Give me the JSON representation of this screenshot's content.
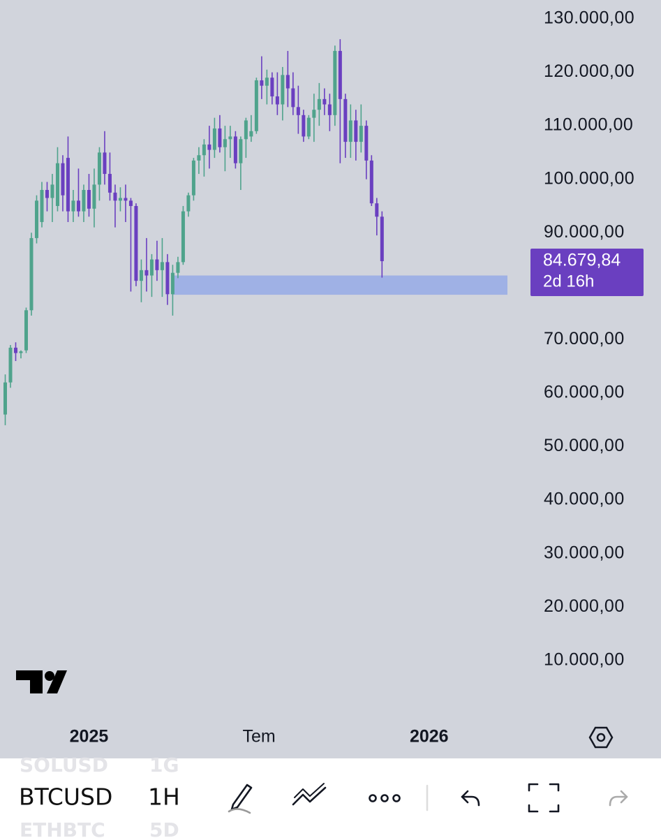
{
  "chart_data": {
    "type": "candlestick",
    "ohlc": [
      [
        56000,
        63500,
        54000,
        62000
      ],
      [
        62000,
        69000,
        61000,
        68500
      ],
      [
        68500,
        69500,
        66000,
        67500
      ],
      [
        67500,
        68000,
        66500,
        67800
      ],
      [
        68000,
        76000,
        67500,
        75500
      ],
      [
        75500,
        90000,
        74500,
        89000
      ],
      [
        89000,
        97000,
        88000,
        96000
      ],
      [
        92000,
        99500,
        91000,
        98000
      ],
      [
        98000,
        99500,
        94000,
        96500
      ],
      [
        96500,
        101000,
        92000,
        99000
      ],
      [
        95000,
        106000,
        94000,
        103000
      ],
      [
        103000,
        104500,
        94000,
        97000
      ],
      [
        104000,
        108000,
        92000,
        94000
      ],
      [
        94000,
        98000,
        92000,
        96000
      ],
      [
        96000,
        102000,
        93000,
        94000
      ],
      [
        94000,
        99000,
        92000,
        98000
      ],
      [
        98000,
        101000,
        93000,
        94500
      ],
      [
        94500,
        102000,
        91000,
        99000
      ],
      [
        99000,
        106000,
        96000,
        105000
      ],
      [
        105000,
        109000,
        99000,
        101000
      ],
      [
        101000,
        105000,
        96000,
        97500
      ],
      [
        97500,
        99000,
        91000,
        96000
      ],
      [
        96000,
        98500,
        94000,
        96500
      ],
      [
        96500,
        99000,
        92000,
        96000
      ],
      [
        96000,
        96500,
        79000,
        95000
      ],
      [
        95000,
        95500,
        80000,
        81000
      ],
      [
        81000,
        85000,
        77000,
        83000
      ],
      [
        83000,
        89000,
        79000,
        82000
      ],
      [
        82000,
        86000,
        78000,
        85000
      ],
      [
        85000,
        88500,
        81000,
        83000
      ],
      [
        83000,
        89000,
        78000,
        84500
      ],
      [
        84500,
        86000,
        76500,
        78500
      ],
      [
        78500,
        84000,
        74500,
        82500
      ],
      [
        82500,
        85500,
        81500,
        84500
      ],
      [
        84500,
        95000,
        84000,
        94000
      ],
      [
        94000,
        97500,
        93000,
        97000
      ],
      [
        97000,
        104000,
        96000,
        103500
      ],
      [
        103500,
        106000,
        101000,
        104500
      ],
      [
        104500,
        107500,
        100500,
        106500
      ],
      [
        106500,
        110000,
        102000,
        105500
      ],
      [
        105500,
        111500,
        104000,
        109500
      ],
      [
        109500,
        112000,
        105000,
        106000
      ],
      [
        106000,
        110000,
        101500,
        107500
      ],
      [
        107500,
        110000,
        104000,
        108000
      ],
      [
        108000,
        109000,
        102000,
        103000
      ],
      [
        103000,
        108000,
        98000,
        107500
      ],
      [
        107500,
        111500,
        104000,
        111000
      ],
      [
        108000,
        112000,
        107000,
        109000
      ],
      [
        109000,
        119000,
        108500,
        118500
      ],
      [
        118500,
        123000,
        115000,
        117500
      ],
      [
        117500,
        120500,
        114000,
        119000
      ],
      [
        119000,
        120000,
        114000,
        115500
      ],
      [
        115500,
        120000,
        112000,
        114000
      ],
      [
        114000,
        121000,
        111000,
        119500
      ],
      [
        119500,
        124000,
        113500,
        117000
      ],
      [
        117000,
        120000,
        112000,
        113500
      ],
      [
        113500,
        117500,
        108500,
        112000
      ],
      [
        112000,
        113000,
        107000,
        108000
      ],
      [
        108000,
        112000,
        107500,
        111500
      ],
      [
        111500,
        116000,
        107000,
        113000
      ],
      [
        113000,
        118000,
        110000,
        115000
      ],
      [
        115000,
        117000,
        112000,
        114000
      ],
      [
        114000,
        116000,
        109000,
        112000
      ],
      [
        112000,
        125000,
        110000,
        124000
      ],
      [
        124000,
        126200,
        103000,
        115000
      ],
      [
        115000,
        116000,
        104000,
        107000
      ],
      [
        107000,
        114000,
        104000,
        111000
      ],
      [
        111000,
        113000,
        103500,
        107000
      ],
      [
        107000,
        114000,
        105000,
        110000
      ],
      [
        110000,
        111000,
        100000,
        103500
      ],
      [
        103500,
        104500,
        95000,
        95500
      ],
      [
        95500,
        96500,
        89500,
        93000
      ],
      [
        93000,
        94000,
        81600,
        84679.84
      ]
    ],
    "up_color": "#4fa38c",
    "down_color": "#6a3fc0",
    "zone": {
      "low": 78400,
      "high": 82000,
      "start": 32,
      "color": "#9fb1e5"
    },
    "last_price": {
      "value": 84679.84,
      "label": "84.679,84"
    },
    "countdown": "2d 16h",
    "xlim": [
      -1,
      97.7
    ],
    "xticks": [
      {
        "value": 16,
        "label": "2025"
      },
      {
        "value": 48.5,
        "label": "Tem"
      },
      {
        "value": 81,
        "label": "2026"
      }
    ],
    "ylim": [
      -1000,
      130000
    ],
    "yticks": [
      {
        "value": 130000,
        "label": "130.000,00"
      },
      {
        "value": 120000,
        "label": "120.000,00"
      },
      {
        "value": 110000,
        "label": "110.000,00"
      },
      {
        "value": 100000,
        "label": "100.000,00"
      },
      {
        "value": 90000,
        "label": "90.000,00"
      },
      {
        "value": 70000,
        "label": "70.000,00"
      },
      {
        "value": 60000,
        "label": "60.000,00"
      },
      {
        "value": 50000,
        "label": "50.000,00"
      },
      {
        "value": 40000,
        "label": "40.000,00"
      },
      {
        "value": 30000,
        "label": "30.000,00"
      },
      {
        "value": 20000,
        "label": "20.000,00"
      },
      {
        "value": 10000,
        "label": "10.000,00"
      }
    ]
  },
  "toolbar": {
    "symbols": [
      "SOLUSD",
      "BTCUSD",
      "ETHBTC"
    ],
    "intervals": [
      "1G",
      "1H",
      "5D"
    ]
  }
}
